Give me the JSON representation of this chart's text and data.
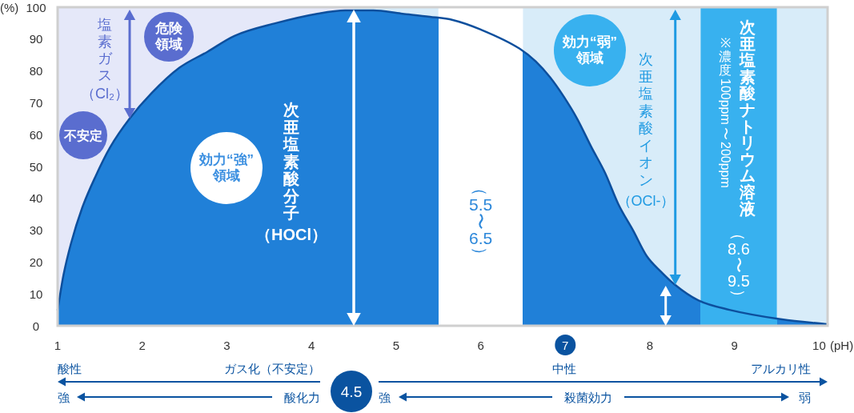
{
  "chart_data": {
    "type": "area",
    "xlabel": "(pH)",
    "ylabel": "(%)",
    "x": [
      1,
      1.07,
      1.16,
      1.29,
      1.45,
      1.62,
      1.85,
      2.11,
      2.44,
      2.77,
      3.09,
      3.58,
      4.08,
      4.4,
      4.73,
      5.06,
      5.4,
      5.67,
      6.0,
      6.46,
      6.65,
      6.82,
      6.98,
      7.14,
      7.31,
      7.47,
      7.63,
      7.8,
      7.96,
      8.13,
      8.29,
      8.57,
      8.94,
      9.56,
      10.1
    ],
    "series": [
      {
        "color": "#2080d8",
        "values": [
          5,
          16,
          26,
          37,
          47,
          56,
          65,
          73,
          81,
          86,
          91,
          95,
          98,
          99,
          99,
          98,
          97,
          96,
          93,
          87,
          83,
          78,
          72,
          65,
          56,
          48,
          38,
          30,
          22,
          17,
          13,
          8,
          5,
          2,
          0.5
        ]
      }
    ],
    "xlim": [
      1,
      10.1
    ],
    "ylim": [
      0,
      100
    ],
    "xticks": [
      1,
      2,
      3,
      4,
      5,
      6,
      7,
      8,
      9,
      10
    ],
    "yticks": [
      0,
      10,
      20,
      30,
      40,
      50,
      60,
      70,
      80,
      90,
      100
    ],
    "bands": [
      {
        "axis": "x",
        "from": 1,
        "to": 4.5,
        "color": "#e5e8f9"
      },
      {
        "axis": "x",
        "from": 4.5,
        "to": 10.1,
        "color": "#d8ecf9"
      },
      {
        "axis": "x",
        "from": 5.5,
        "to": 6.5,
        "color": "#ffffff",
        "label": "（5.5〜6.5）"
      },
      {
        "axis": "x",
        "from": 8.6,
        "to": 9.5,
        "color": "#38b1ef",
        "label": "（8.6〜9.5）"
      }
    ],
    "ref_lines": [
      {
        "axis": "x",
        "value": 4.5,
        "color": "#ffffff"
      },
      {
        "axis": "x",
        "value": 8.3,
        "color": "#1f9ae2"
      }
    ],
    "annotations": [
      "塩素ガス（Cl₂）",
      "危険領域",
      "不安定",
      "効力“強”領域",
      "次亜塩素酸分子（HOCl）",
      "効力“弱”領域",
      "次亜塩素酸イオン（OCl-）",
      "次亜塩素酸ナトリウム溶液",
      "※濃度100ppm〜200ppm",
      "酸性",
      "ガス化（不安定）",
      "4.5",
      "中性",
      "アルカリ性",
      "強",
      "酸化力",
      "強",
      "殺菌効力",
      "弱"
    ]
  }
}
